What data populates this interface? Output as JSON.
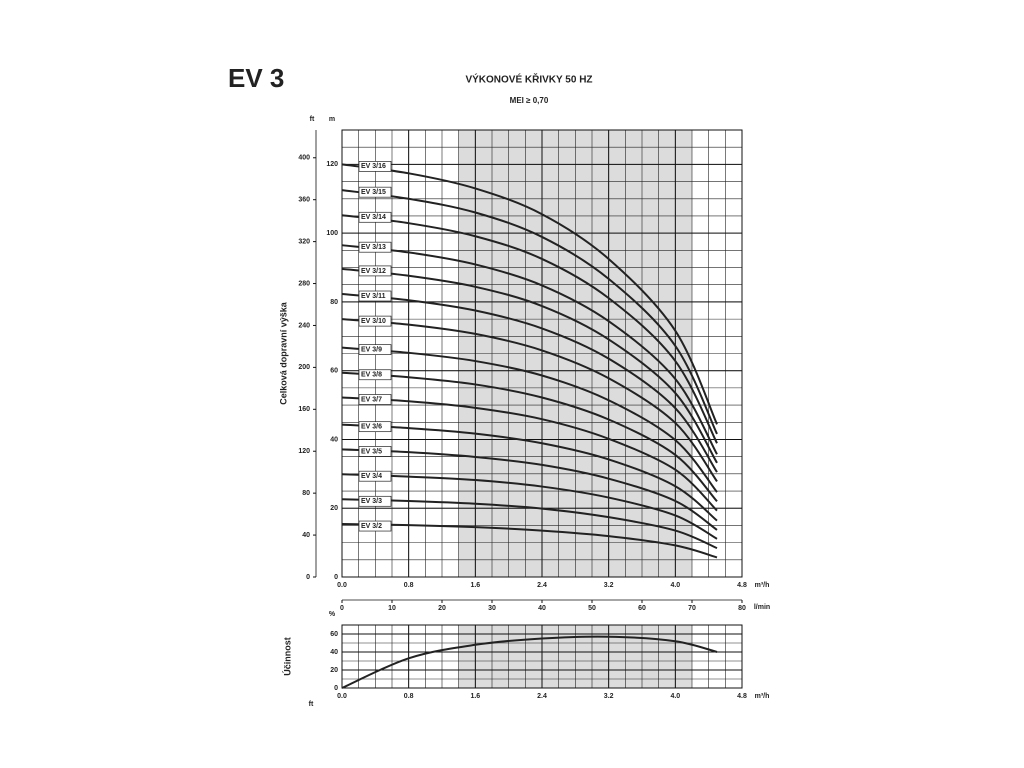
{
  "header": {
    "model": "EV 3"
  },
  "chart_data": [
    {
      "type": "line",
      "title": "VÝKONOVÉ KŘIVKY 50 HZ",
      "subtitle": "MEI ≥ 0,70",
      "y_label": "Celková dopravní výška",
      "y_unit": "m",
      "y2_unit": "ft",
      "x_unit": "m³/h",
      "x2_unit": "l/min",
      "x": [
        0,
        0.8,
        1.6,
        2.4,
        3.2,
        4.0,
        4.5
      ],
      "xlim": [
        0,
        4.8
      ],
      "xticks": [
        {
          "value": 0,
          "label": "0.0"
        },
        0.8,
        1.6,
        2.4,
        3.2,
        {
          "value": 4,
          "label": "4.0"
        },
        4.8
      ],
      "x2lim": [
        0,
        80
      ],
      "x2ticks": [
        0,
        10,
        20,
        30,
        40,
        50,
        60,
        70,
        80
      ],
      "ylim": [
        0,
        130
      ],
      "yticks": [
        0,
        20,
        40,
        60,
        80,
        100,
        120
      ],
      "y2lim": [
        0,
        426.5
      ],
      "y2ticks": [
        0,
        40,
        80,
        120,
        160,
        200,
        240,
        280,
        320,
        360,
        400
      ],
      "grid": true,
      "minor_grid": {
        "x": 0.2,
        "y": 5
      },
      "highlight_range": [
        1.4,
        4.2
      ],
      "series": [
        {
          "name": "EV 3/16",
          "color": "#222222",
          "values": [
            120,
            117.4,
            113.0,
            105.5,
            92.5,
            71.6,
            44.4
          ]
        },
        {
          "name": "EV 3/15",
          "color": "#222222",
          "values": [
            112.5,
            110.0,
            106.0,
            98.9,
            86.7,
            67.2,
            41.6
          ]
        },
        {
          "name": "EV 3/14",
          "color": "#222222",
          "values": [
            105.2,
            102.9,
            99.1,
            92.5,
            81.1,
            62.8,
            38.9
          ]
        },
        {
          "name": "EV 3/13",
          "color": "#222222",
          "values": [
            96.5,
            94.4,
            90.9,
            84.8,
            74.4,
            57.6,
            35.7
          ]
        },
        {
          "name": "EV 3/12",
          "color": "#222222",
          "values": [
            89.6,
            87.6,
            84.4,
            78.8,
            69.1,
            53.5,
            33.2
          ]
        },
        {
          "name": "EV 3/11",
          "color": "#222222",
          "values": [
            82.3,
            80.5,
            77.5,
            72.3,
            63.5,
            49.1,
            30.5
          ]
        },
        {
          "name": "EV 3/10",
          "color": "#222222",
          "values": [
            75.0,
            73.4,
            70.7,
            65.9,
            57.8,
            44.8,
            27.8
          ]
        },
        {
          "name": "EV 3/9",
          "color": "#222222",
          "values": [
            66.7,
            65.2,
            62.8,
            58.6,
            51.4,
            39.8,
            24.7
          ]
        },
        {
          "name": "EV 3/8",
          "color": "#222222",
          "values": [
            59.4,
            58.1,
            56.0,
            52.2,
            45.8,
            35.5,
            22.0
          ]
        },
        {
          "name": "EV 3/7",
          "color": "#222222",
          "values": [
            52.2,
            51.1,
            49.2,
            45.9,
            40.2,
            31.2,
            19.3
          ]
        },
        {
          "name": "EV 3/6",
          "color": "#222222",
          "values": [
            44.3,
            43.3,
            41.7,
            38.9,
            34.2,
            26.4,
            16.4
          ]
        },
        {
          "name": "EV 3/5",
          "color": "#222222",
          "values": [
            37.1,
            36.3,
            34.9,
            32.6,
            28.6,
            22.1,
            13.7
          ]
        },
        {
          "name": "EV 3/4",
          "color": "#222222",
          "values": [
            29.9,
            29.2,
            28.2,
            26.3,
            23.1,
            17.9,
            11.1
          ]
        },
        {
          "name": "EV 3/3",
          "color": "#222222",
          "values": [
            22.6,
            22.1,
            21.3,
            19.9,
            17.4,
            13.5,
            8.4
          ]
        },
        {
          "name": "EV 3/2",
          "color": "#222222",
          "values": [
            15.4,
            15.1,
            14.5,
            13.5,
            11.9,
            9.2,
            5.7
          ]
        }
      ]
    },
    {
      "type": "line",
      "y_label": "Účinnost",
      "y_unit": "%",
      "x_unit": "m³/h",
      "corner_label": "ft",
      "x": [
        0,
        0.8,
        1.6,
        2.4,
        3.2,
        4.0,
        4.5
      ],
      "xlim": [
        0,
        4.8
      ],
      "xticks": [
        {
          "value": 0,
          "label": "0.0"
        },
        0.8,
        1.6,
        2.4,
        3.2,
        {
          "value": 4,
          "label": "4.0"
        },
        4.8
      ],
      "ylim": [
        0,
        70
      ],
      "yticks": [
        0,
        20,
        40,
        60
      ],
      "grid": true,
      "minor_grid": {
        "x": 0.2,
        "y": 10
      },
      "highlight_range": [
        1.4,
        4.2
      ],
      "series": [
        {
          "color": "#222222",
          "values": [
            0,
            33,
            48,
            55,
            57,
            52,
            40
          ]
        }
      ]
    }
  ]
}
